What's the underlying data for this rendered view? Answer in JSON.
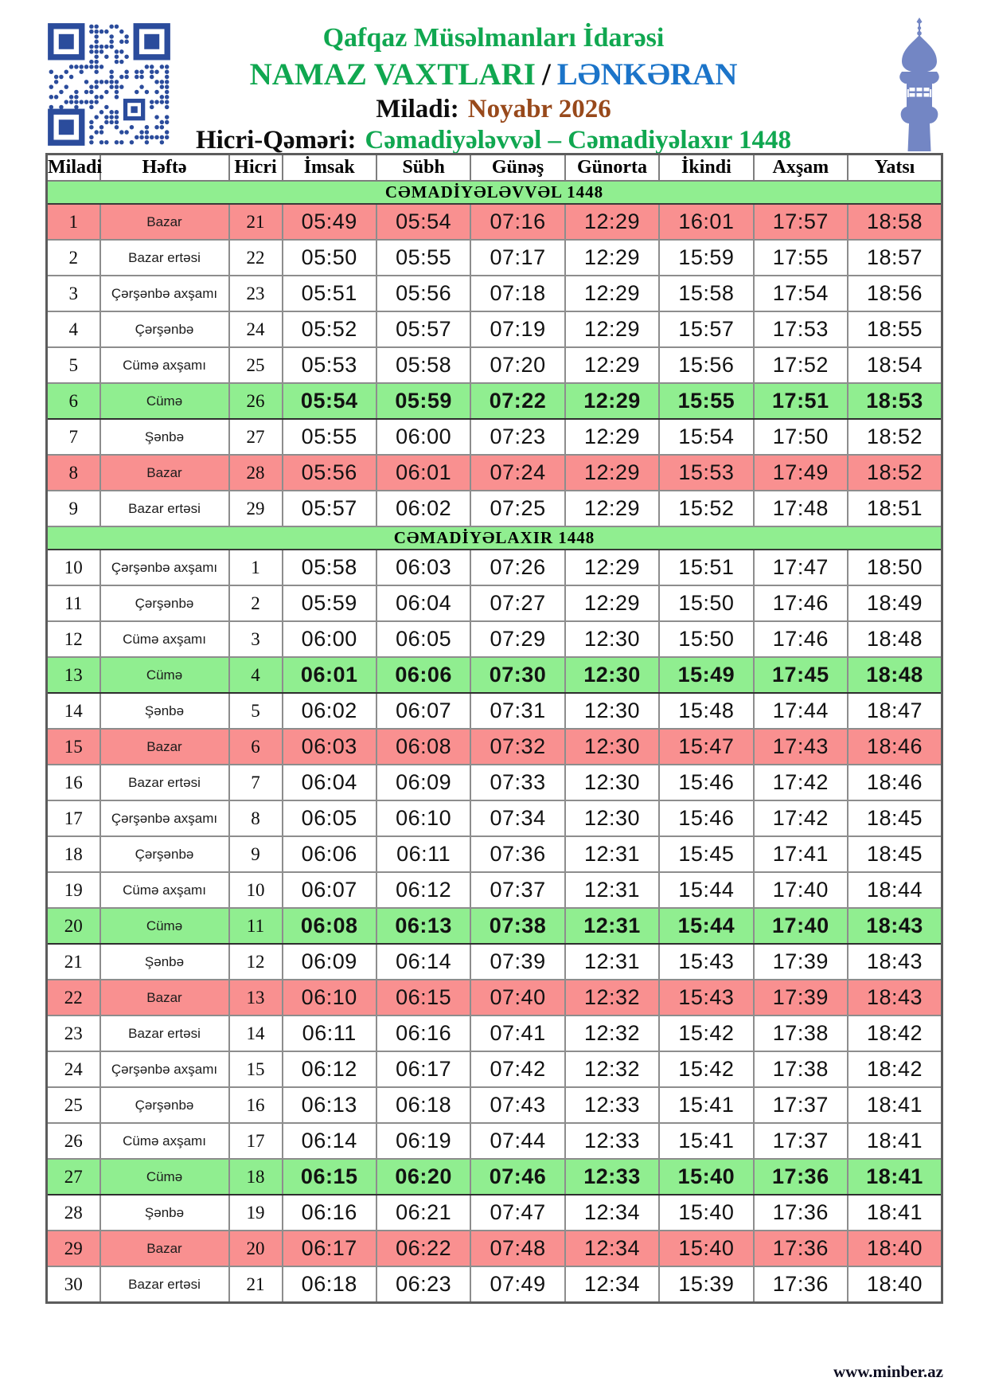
{
  "header": {
    "org": "Qafqaz Müsəlmanları İdarəsi",
    "title": "NAMAZ VAXTLARI",
    "title_separator": "/",
    "city": "LƏNKƏRAN",
    "miladi_label": "Miladi:",
    "miladi_value": "Noyabr 2026",
    "hicri_label": "Hicri-Qəməri:",
    "hicri_value": "Cəmadiyələvvəl – Cəmadiyəlaxır 1448",
    "qr_icon": "qr-code-icon",
    "minaret_icon": "minaret-icon"
  },
  "colors": {
    "green_text": "#10a750",
    "blue_text": "#1b74c9",
    "brown_text": "#98491b",
    "pink_row": "#f99090",
    "green_row": "#90ee90",
    "qr_blue": "#2b4c9c",
    "minaret_blue": "#7386c4"
  },
  "table": {
    "columns": [
      "Miladi",
      "Həftə",
      "Hicri",
      "İmsak",
      "Sübh",
      "Günəş",
      "Günorta",
      "İkindi",
      "Axşam",
      "Yatsı"
    ],
    "time_column_keys": [
      "imsak",
      "subh",
      "gunes",
      "gunorta",
      "ikindi",
      "axsam",
      "yatsi"
    ],
    "sections": [
      {
        "title": "CƏMADİYƏLƏVVƏL 1448",
        "rows": [
          {
            "miladi": "1",
            "hefte": "Bazar",
            "hicri": "21",
            "times": [
              "05:49",
              "05:54",
              "07:16",
              "12:29",
              "16:01",
              "17:57",
              "18:58"
            ],
            "highlight": "pink"
          },
          {
            "miladi": "2",
            "hefte": "Bazar ertəsi",
            "hicri": "22",
            "times": [
              "05:50",
              "05:55",
              "07:17",
              "12:29",
              "15:59",
              "17:55",
              "18:57"
            ],
            "highlight": "none"
          },
          {
            "miladi": "3",
            "hefte": "Çərşənbə axşamı",
            "hicri": "23",
            "times": [
              "05:51",
              "05:56",
              "07:18",
              "12:29",
              "15:58",
              "17:54",
              "18:56"
            ],
            "highlight": "none"
          },
          {
            "miladi": "4",
            "hefte": "Çərşənbə",
            "hicri": "24",
            "times": [
              "05:52",
              "05:57",
              "07:19",
              "12:29",
              "15:57",
              "17:53",
              "18:55"
            ],
            "highlight": "none"
          },
          {
            "miladi": "5",
            "hefte": "Cümə axşamı",
            "hicri": "25",
            "times": [
              "05:53",
              "05:58",
              "07:20",
              "12:29",
              "15:56",
              "17:52",
              "18:54"
            ],
            "highlight": "none"
          },
          {
            "miladi": "6",
            "hefte": "Cümə",
            "hicri": "26",
            "times": [
              "05:54",
              "05:59",
              "07:22",
              "12:29",
              "15:55",
              "17:51",
              "18:53"
            ],
            "highlight": "green"
          },
          {
            "miladi": "7",
            "hefte": "Şənbə",
            "hicri": "27",
            "times": [
              "05:55",
              "06:00",
              "07:23",
              "12:29",
              "15:54",
              "17:50",
              "18:52"
            ],
            "highlight": "none"
          },
          {
            "miladi": "8",
            "hefte": "Bazar",
            "hicri": "28",
            "times": [
              "05:56",
              "06:01",
              "07:24",
              "12:29",
              "15:53",
              "17:49",
              "18:52"
            ],
            "highlight": "pink"
          },
          {
            "miladi": "9",
            "hefte": "Bazar ertəsi",
            "hicri": "29",
            "times": [
              "05:57",
              "06:02",
              "07:25",
              "12:29",
              "15:52",
              "17:48",
              "18:51"
            ],
            "highlight": "none"
          }
        ]
      },
      {
        "title": "CƏMADİYƏLAXIR 1448",
        "rows": [
          {
            "miladi": "10",
            "hefte": "Çərşənbə axşamı",
            "hicri": "1",
            "times": [
              "05:58",
              "06:03",
              "07:26",
              "12:29",
              "15:51",
              "17:47",
              "18:50"
            ],
            "highlight": "none"
          },
          {
            "miladi": "11",
            "hefte": "Çərşənbə",
            "hicri": "2",
            "times": [
              "05:59",
              "06:04",
              "07:27",
              "12:29",
              "15:50",
              "17:46",
              "18:49"
            ],
            "highlight": "none"
          },
          {
            "miladi": "12",
            "hefte": "Cümə axşamı",
            "hicri": "3",
            "times": [
              "06:00",
              "06:05",
              "07:29",
              "12:30",
              "15:50",
              "17:46",
              "18:48"
            ],
            "highlight": "none"
          },
          {
            "miladi": "13",
            "hefte": "Cümə",
            "hicri": "4",
            "times": [
              "06:01",
              "06:06",
              "07:30",
              "12:30",
              "15:49",
              "17:45",
              "18:48"
            ],
            "highlight": "green"
          },
          {
            "miladi": "14",
            "hefte": "Şənbə",
            "hicri": "5",
            "times": [
              "06:02",
              "06:07",
              "07:31",
              "12:30",
              "15:48",
              "17:44",
              "18:47"
            ],
            "highlight": "none"
          },
          {
            "miladi": "15",
            "hefte": "Bazar",
            "hicri": "6",
            "times": [
              "06:03",
              "06:08",
              "07:32",
              "12:30",
              "15:47",
              "17:43",
              "18:46"
            ],
            "highlight": "pink"
          },
          {
            "miladi": "16",
            "hefte": "Bazar ertəsi",
            "hicri": "7",
            "times": [
              "06:04",
              "06:09",
              "07:33",
              "12:30",
              "15:46",
              "17:42",
              "18:46"
            ],
            "highlight": "none"
          },
          {
            "miladi": "17",
            "hefte": "Çərşənbə axşamı",
            "hicri": "8",
            "times": [
              "06:05",
              "06:10",
              "07:34",
              "12:30",
              "15:46",
              "17:42",
              "18:45"
            ],
            "highlight": "none"
          },
          {
            "miladi": "18",
            "hefte": "Çərşənbə",
            "hicri": "9",
            "times": [
              "06:06",
              "06:11",
              "07:36",
              "12:31",
              "15:45",
              "17:41",
              "18:45"
            ],
            "highlight": "none"
          },
          {
            "miladi": "19",
            "hefte": "Cümə axşamı",
            "hicri": "10",
            "times": [
              "06:07",
              "06:12",
              "07:37",
              "12:31",
              "15:44",
              "17:40",
              "18:44"
            ],
            "highlight": "none"
          },
          {
            "miladi": "20",
            "hefte": "Cümə",
            "hicri": "11",
            "times": [
              "06:08",
              "06:13",
              "07:38",
              "12:31",
              "15:44",
              "17:40",
              "18:43"
            ],
            "highlight": "green"
          },
          {
            "miladi": "21",
            "hefte": "Şənbə",
            "hicri": "12",
            "times": [
              "06:09",
              "06:14",
              "07:39",
              "12:31",
              "15:43",
              "17:39",
              "18:43"
            ],
            "highlight": "none"
          },
          {
            "miladi": "22",
            "hefte": "Bazar",
            "hicri": "13",
            "times": [
              "06:10",
              "06:15",
              "07:40",
              "12:32",
              "15:43",
              "17:39",
              "18:43"
            ],
            "highlight": "pink"
          },
          {
            "miladi": "23",
            "hefte": "Bazar ertəsi",
            "hicri": "14",
            "times": [
              "06:11",
              "06:16",
              "07:41",
              "12:32",
              "15:42",
              "17:38",
              "18:42"
            ],
            "highlight": "none"
          },
          {
            "miladi": "24",
            "hefte": "Çərşənbə axşamı",
            "hicri": "15",
            "times": [
              "06:12",
              "06:17",
              "07:42",
              "12:32",
              "15:42",
              "17:38",
              "18:42"
            ],
            "highlight": "none"
          },
          {
            "miladi": "25",
            "hefte": "Çərşənbə",
            "hicri": "16",
            "times": [
              "06:13",
              "06:18",
              "07:43",
              "12:33",
              "15:41",
              "17:37",
              "18:41"
            ],
            "highlight": "none"
          },
          {
            "miladi": "26",
            "hefte": "Cümə axşamı",
            "hicri": "17",
            "times": [
              "06:14",
              "06:19",
              "07:44",
              "12:33",
              "15:41",
              "17:37",
              "18:41"
            ],
            "highlight": "none"
          },
          {
            "miladi": "27",
            "hefte": "Cümə",
            "hicri": "18",
            "times": [
              "06:15",
              "06:20",
              "07:46",
              "12:33",
              "15:40",
              "17:36",
              "18:41"
            ],
            "highlight": "green"
          },
          {
            "miladi": "28",
            "hefte": "Şənbə",
            "hicri": "19",
            "times": [
              "06:16",
              "06:21",
              "07:47",
              "12:34",
              "15:40",
              "17:36",
              "18:41"
            ],
            "highlight": "none"
          },
          {
            "miladi": "29",
            "hefte": "Bazar",
            "hicri": "20",
            "times": [
              "06:17",
              "06:22",
              "07:48",
              "12:34",
              "15:40",
              "17:36",
              "18:40"
            ],
            "highlight": "pink"
          },
          {
            "miladi": "30",
            "hefte": "Bazar ertəsi",
            "hicri": "21",
            "times": [
              "06:18",
              "06:23",
              "07:49",
              "12:34",
              "15:39",
              "17:36",
              "18:40"
            ],
            "highlight": "none"
          }
        ]
      }
    ]
  },
  "footer": {
    "website": "www.minber.az"
  }
}
